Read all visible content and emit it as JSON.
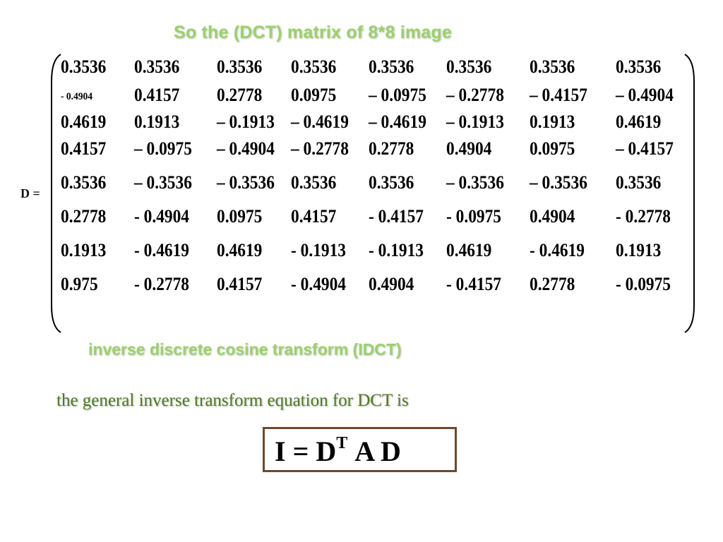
{
  "slide": {
    "title": "So the  (DCT) matrix of 8*8 image",
    "matrix_label": "D =",
    "matrix_rows": [
      [
        "0.3536",
        "0.3536",
        "0.3536",
        "0.3536",
        "0.3536",
        "0.3536",
        "0.3536",
        "0.3536"
      ],
      [
        "- 0.4904",
        "0.4157",
        "0.2778",
        "0.0975",
        "– 0.0975",
        "– 0.2778",
        "– 0.4157",
        "– 0.4904"
      ],
      [
        "0.4619",
        "0.1913",
        "– 0.1913",
        "– 0.4619",
        "– 0.4619",
        "– 0.1913",
        "0.1913",
        "0.4619"
      ],
      [
        "0.4157",
        "– 0.0975",
        "– 0.4904",
        "– 0.2778",
        "0.2778",
        "0.4904",
        "0.0975",
        "– 0.4157"
      ],
      [
        "0.3536",
        "– 0.3536",
        "– 0.3536",
        "0.3536",
        "0.3536",
        "– 0.3536",
        "– 0.3536",
        "0.3536"
      ],
      [
        "0.2778",
        "- 0.4904",
        "0.0975",
        "0.4157",
        "- 0.4157",
        "- 0.0975",
        "0.4904",
        "- 0.2778"
      ],
      [
        "0.1913",
        "- 0.4619",
        "0.4619",
        "- 0.1913",
        "- 0.1913",
        "0.4619",
        "- 0.4619",
        "0.1913"
      ],
      [
        "0.975",
        "- 0.2778",
        "0.4157",
        "- 0.4904",
        "0.4904",
        "- 0.4157",
        "0.2778",
        "- 0.0975"
      ]
    ],
    "subtitle": "inverse discrete cosine transform (IDCT)",
    "general_text": "the general  inverse transform equation for DCT is",
    "equation": {
      "lhs": "I = D",
      "superscript": "T",
      "rhs": "A  D"
    },
    "colors": {
      "title": "#9bd16b",
      "general_text": "#4e7a22",
      "box_border": "#6b4a2b"
    }
  }
}
